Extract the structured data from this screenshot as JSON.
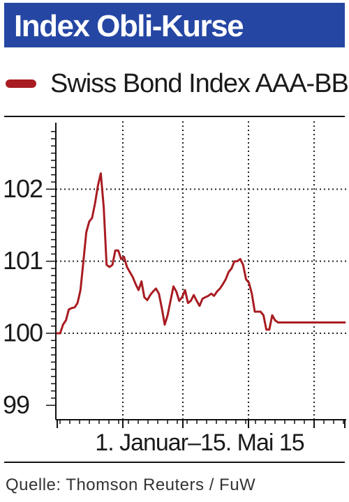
{
  "title": "Index Obli-Kurse",
  "legend": {
    "label": "Swiss Bond Index AAA-BBB",
    "color": "#a81c22"
  },
  "source": "Quelle: Thomson Reuters / FuW",
  "colors": {
    "title_band": "#2546a3",
    "series": "#a81c22"
  },
  "chart_data": {
    "type": "line",
    "xlabel": "1. Januar–15. Mai 15",
    "ylabel": "",
    "ylim": [
      98.8,
      103.0
    ],
    "yticks": [
      99,
      100,
      101,
      102
    ],
    "grid": true,
    "legend_position": "top",
    "series": [
      {
        "name": "Swiss Bond Index AAA-BBB",
        "x": [
          0,
          1,
          2,
          3,
          4,
          5,
          6,
          7,
          8,
          9,
          10,
          11,
          12,
          13,
          14,
          15,
          16,
          17,
          18,
          19,
          20,
          21,
          22,
          23,
          24,
          25,
          26,
          27,
          28,
          29,
          30,
          31,
          32,
          33,
          34,
          35,
          36,
          37,
          38,
          39,
          40,
          41,
          42,
          43,
          44,
          45,
          46,
          47,
          48,
          49,
          50,
          51,
          52,
          53,
          54,
          55,
          56,
          57,
          58,
          59,
          60,
          61,
          62,
          63,
          64,
          65,
          66,
          67,
          68,
          69,
          70,
          71,
          72,
          73,
          74,
          75,
          76,
          77,
          78,
          79,
          80,
          81,
          82,
          83,
          84,
          85,
          86,
          87,
          88,
          89,
          90,
          91,
          92,
          93,
          94,
          95,
          96,
          97,
          98,
          99
        ],
        "y": [
          100.0,
          100.0,
          100.12,
          100.18,
          100.33,
          100.35,
          100.36,
          100.42,
          100.6,
          101.0,
          101.4,
          101.55,
          101.6,
          101.8,
          102.05,
          102.22,
          101.75,
          100.95,
          100.92,
          100.95,
          101.15,
          101.15,
          101.03,
          101.06,
          100.92,
          100.85,
          100.78,
          100.68,
          100.6,
          100.72,
          100.5,
          100.46,
          100.53,
          100.58,
          100.62,
          100.55,
          100.35,
          100.12,
          100.25,
          100.45,
          100.65,
          100.58,
          100.45,
          100.5,
          100.6,
          100.42,
          100.45,
          100.53,
          100.45,
          100.38,
          100.48,
          100.5,
          100.52,
          100.55,
          100.52,
          100.58,
          100.62,
          100.68,
          100.75,
          100.85,
          100.9,
          101.0,
          101.0,
          101.03,
          100.95,
          100.75,
          100.7,
          100.55,
          100.3,
          100.3,
          100.3,
          100.25,
          100.05,
          100.05,
          100.25,
          100.18,
          100.15,
          100.15,
          100.15,
          100.15,
          100.15,
          100.15,
          100.15,
          100.15,
          100.15,
          100.15,
          100.15,
          100.15,
          100.15,
          100.15,
          100.15,
          100.15,
          100.15,
          100.15,
          100.15,
          100.15,
          100.15,
          100.15,
          100.15,
          100.15
        ]
      }
    ]
  }
}
